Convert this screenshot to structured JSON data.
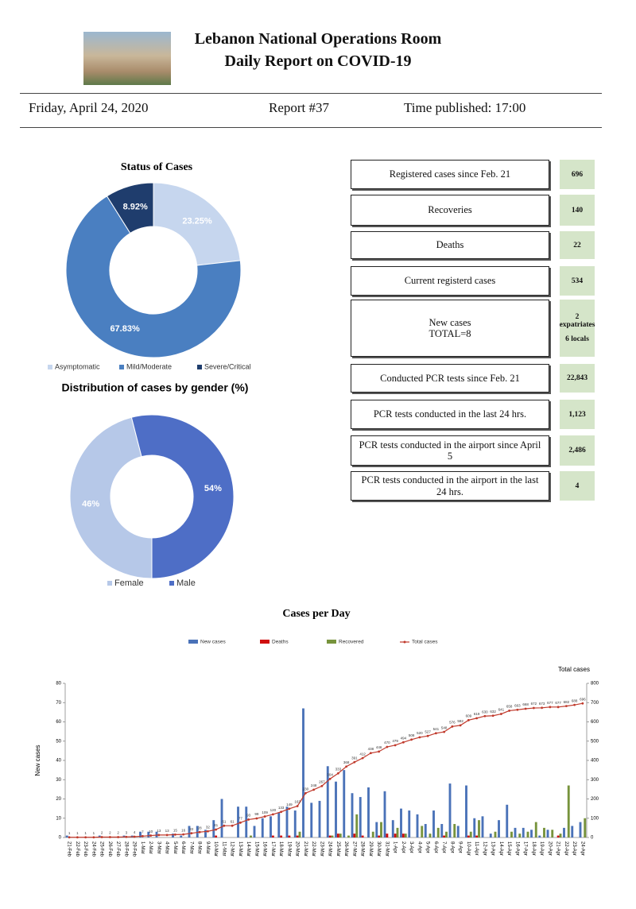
{
  "header": {
    "title_line1": "Lebanon National Operations Room",
    "title_line2": "Daily Report on COVID-19",
    "date": "Friday, April 24, 2020",
    "report": "Report #37",
    "time": "Time published: 17:00"
  },
  "stats": [
    {
      "label": "Registered cases since Feb. 21",
      "value": "696"
    },
    {
      "label": "Recoveries",
      "value": "140"
    },
    {
      "label": "Deaths",
      "value": "22"
    },
    {
      "label": "Current registerd cases",
      "value": "534"
    },
    {
      "label": "New cases",
      "total": "TOTAL=8",
      "values": [
        "2 expatriates",
        "6 locals"
      ]
    },
    {
      "label": "Conducted PCR tests since Feb. 21",
      "value": "22,843"
    },
    {
      "label": "PCR tests conducted in the last 24 hrs.",
      "value": "1,123"
    },
    {
      "label": "PCR tests conducted in the airport since April 5",
      "value": "2,486"
    },
    {
      "label": "PCR tests conducted in the airport in the last 24 hrs.",
      "value": "4"
    }
  ],
  "chart_data": [
    {
      "type": "pie",
      "title": "Status of Cases",
      "categories": [
        "Asymptomatic",
        "Mild/Moderate",
        "Severe/Critical"
      ],
      "values": [
        23.25,
        67.83,
        8.92
      ],
      "value_labels": [
        "23.25%",
        "67.83%",
        "8.92%"
      ],
      "colors": [
        "#c6d6ee",
        "#4a7fc1",
        "#1f3d6d"
      ]
    },
    {
      "type": "pie",
      "title": "Distribution of cases by gender (%)",
      "categories": [
        "Female",
        "Male"
      ],
      "values": [
        46,
        54
      ],
      "value_labels": [
        "46%",
        "54%"
      ],
      "colors": [
        "#b6c8e8",
        "#4e6ec6"
      ]
    },
    {
      "type": "bar",
      "title": "Cases per Day",
      "ylabel": "New cases",
      "y2label": "Total cases",
      "categories": [
        "21-Feb",
        "22-Feb",
        "23-Feb",
        "24-Feb",
        "25-Feb",
        "26-Feb",
        "27-Feb",
        "28-Feb",
        "29-Feb",
        "1-Mar",
        "2-Mar",
        "3-Mar",
        "4-Mar",
        "5-Mar",
        "6-Mar",
        "7-Mar",
        "8-Mar",
        "9-Mar",
        "10-Mar",
        "11-Mar",
        "12-Mar",
        "13-Mar",
        "14-Mar",
        "15-Mar",
        "16-Mar",
        "17-Mar",
        "18-Mar",
        "19-Mar",
        "20-Mar",
        "21-Mar",
        "22-Mar",
        "23-Mar",
        "24-Mar",
        "25-Mar",
        "26-Mar",
        "27-Mar",
        "28-Mar",
        "29-Mar",
        "30-Mar",
        "31-Mar",
        "1-Apr",
        "2-Apr",
        "3-Apr",
        "4-Apr",
        "5-Apr",
        "6-Apr",
        "7-Apr",
        "8-Apr",
        "9-Apr",
        "10-Apr",
        "11-Apr",
        "12-Apr",
        "13-Apr",
        "14-Apr",
        "15-Apr",
        "16-Apr",
        "17-Apr",
        "18-Apr",
        "19-Apr",
        "20-Apr",
        "21-Apr",
        "22-Apr",
        "23-Apr",
        "24-Apr"
      ],
      "series": [
        {
          "name": "New cases",
          "color": "#4a72b8",
          "values": [
            1,
            0,
            0,
            0,
            1,
            0,
            0,
            1,
            1,
            3,
            3,
            3,
            0,
            2,
            1,
            6,
            6,
            4,
            9,
            20,
            0,
            16,
            16,
            6,
            10,
            11,
            13,
            16,
            14,
            67,
            18,
            19,
            37,
            29,
            35,
            23,
            21,
            26,
            8,
            24,
            9,
            15,
            14,
            12,
            7,
            14,
            7,
            28,
            6,
            27,
            10,
            11,
            2,
            9,
            17,
            5,
            5,
            4,
            1,
            4,
            0,
            5,
            6,
            8
          ]
        },
        {
          "name": "Deaths",
          "color": "#d01010",
          "values": [
            0,
            0,
            0,
            0,
            0,
            0,
            0,
            0,
            0,
            0,
            0,
            0,
            0,
            0,
            0,
            0,
            0,
            0,
            1,
            0,
            0,
            0,
            0,
            0,
            0,
            1,
            1,
            1,
            1,
            0,
            0,
            0,
            1,
            2,
            0,
            2,
            1,
            0,
            1,
            2,
            2,
            2,
            0,
            0,
            0,
            0,
            1,
            0,
            0,
            1,
            1,
            0,
            0,
            0,
            0,
            0,
            0,
            0,
            0,
            0,
            1,
            0,
            0,
            0
          ]
        },
        {
          "name": "Recovered",
          "color": "#77933c",
          "values": [
            0,
            0,
            0,
            0,
            0,
            0,
            0,
            0,
            0,
            0,
            0,
            0,
            0,
            0,
            0,
            0,
            0,
            0,
            0,
            0,
            0,
            0,
            1,
            0,
            0,
            0,
            0,
            0,
            3,
            0,
            0,
            0,
            1,
            2,
            1,
            12,
            0,
            3,
            8,
            0,
            5,
            2,
            0,
            6,
            2,
            5,
            3,
            7,
            0,
            3,
            9,
            0,
            3,
            0,
            3,
            2,
            3,
            8,
            5,
            4,
            2,
            27,
            0,
            10
          ]
        },
        {
          "name": "Total cases",
          "type": "line",
          "axis": "y2",
          "color": "#c0392b",
          "values": [
            1,
            1,
            1,
            1,
            2,
            2,
            2,
            3,
            4,
            7,
            10,
            13,
            13,
            15,
            16,
            22,
            28,
            32,
            41,
            61,
            61,
            77,
            93,
            99,
            109,
            120,
            133,
            149,
            163,
            230,
            248,
            267,
            304,
            333,
            368,
            391,
            412,
            438,
            446,
            470,
            479,
            494,
            508,
            520,
            527,
            541,
            548,
            576,
            582,
            609,
            619,
            630,
            632,
            641,
            658,
            663,
            668,
            672,
            673,
            677,
            677,
            682,
            688,
            696
          ]
        }
      ],
      "ylim": [
        0,
        80
      ],
      "yticks": [
        0,
        10,
        20,
        30,
        40,
        50,
        60,
        70,
        80
      ],
      "y2lim": [
        0,
        800
      ],
      "y2ticks": [
        0,
        100,
        200,
        300,
        400,
        500,
        600,
        700,
        800
      ],
      "grid": false
    }
  ]
}
